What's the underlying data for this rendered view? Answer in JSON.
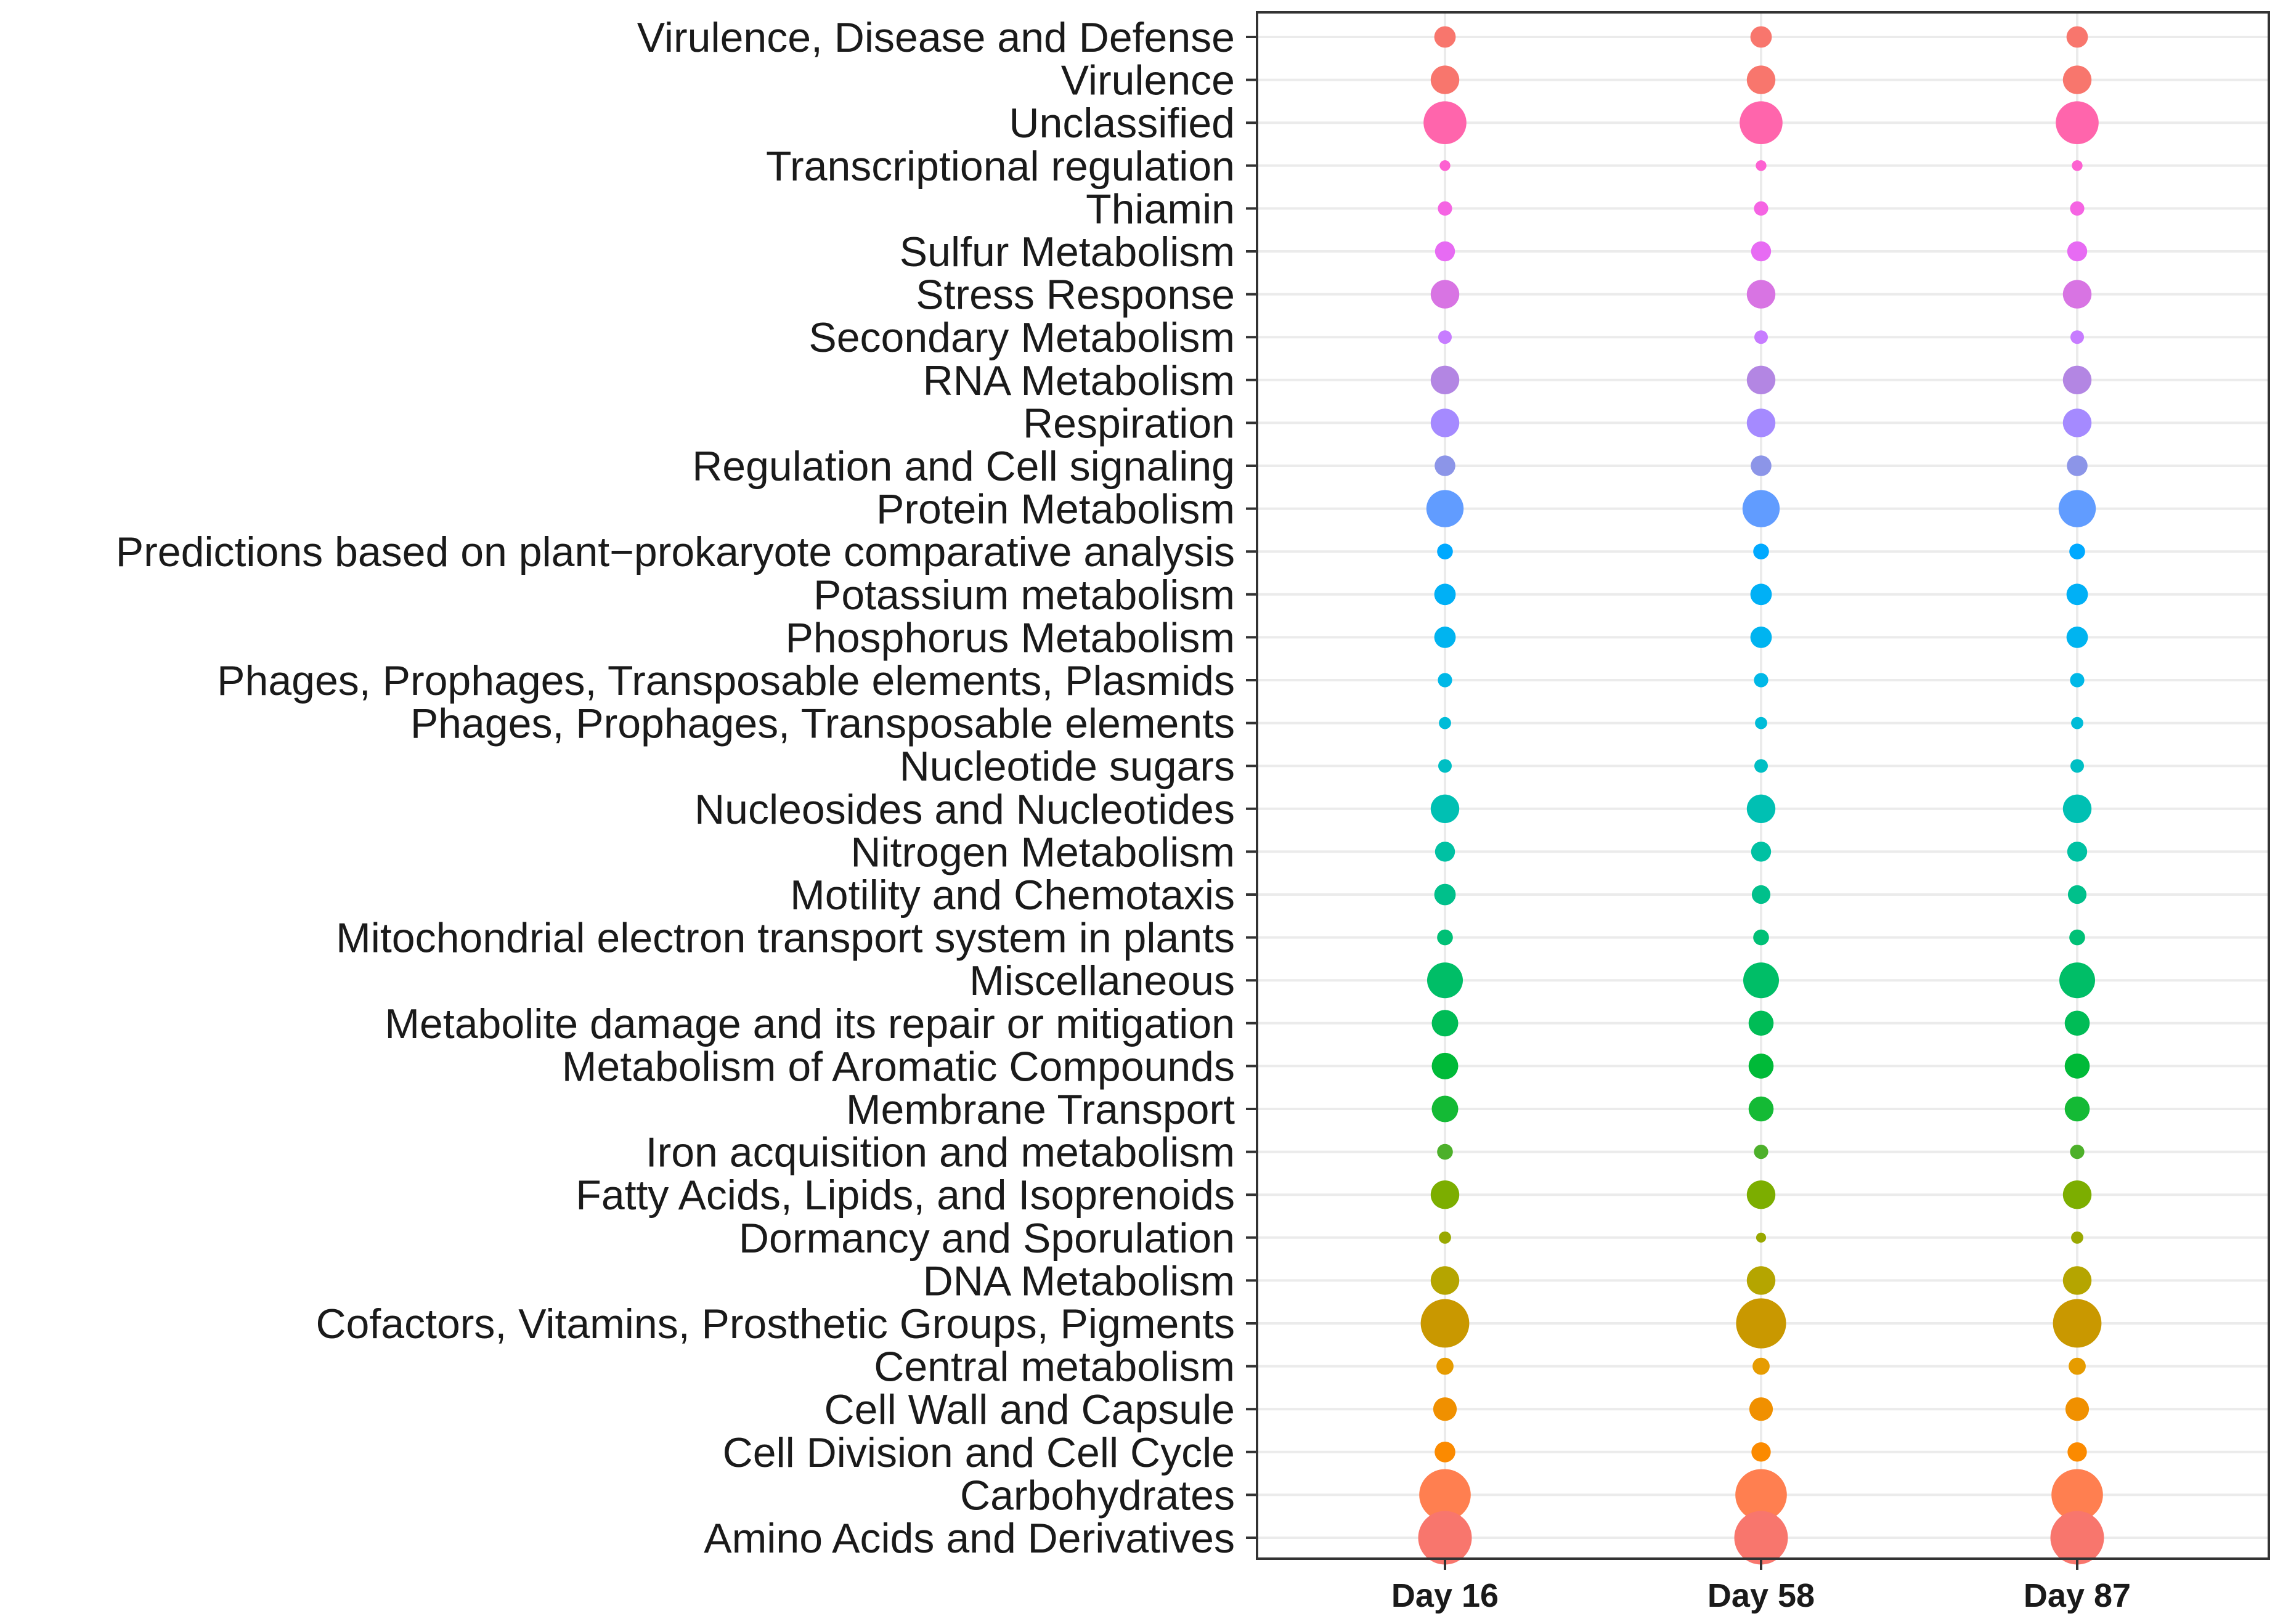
{
  "chart_data": {
    "type": "scatter",
    "subtype": "dot-matrix (bubble size = relative abundance)",
    "title": "",
    "xlabel": "",
    "ylabel": "",
    "legend": "none",
    "grid": true,
    "x_categories": [
      "Day 16",
      "Day 58",
      "Day 87"
    ],
    "size_unit": "relative size (0-1)",
    "rows": [
      {
        "label": "Virulence, Disease and Defense",
        "color": "#F8766D",
        "sizes": [
          0.3,
          0.3,
          0.3
        ]
      },
      {
        "label": "Virulence",
        "color": "#F8766D",
        "sizes": [
          0.4,
          0.4,
          0.4
        ]
      },
      {
        "label": "Unclassified",
        "color": "#FF65AC",
        "sizes": [
          0.6,
          0.6,
          0.6
        ]
      },
      {
        "label": "Transcriptional regulation",
        "color": "#FD61D1",
        "sizes": [
          0.15,
          0.15,
          0.15
        ]
      },
      {
        "label": "Thiamin",
        "color": "#F564E3",
        "sizes": [
          0.2,
          0.2,
          0.2
        ]
      },
      {
        "label": "Sulfur Metabolism",
        "color": "#E76BF3",
        "sizes": [
          0.28,
          0.28,
          0.28
        ]
      },
      {
        "label": "Stress Response",
        "color": "#D874E3",
        "sizes": [
          0.4,
          0.4,
          0.4
        ]
      },
      {
        "label": "Secondary Metabolism",
        "color": "#C77CFF",
        "sizes": [
          0.19,
          0.19,
          0.19
        ]
      },
      {
        "label": "RNA Metabolism",
        "color": "#B386E3",
        "sizes": [
          0.4,
          0.4,
          0.4
        ]
      },
      {
        "label": "Respiration",
        "color": "#A58AFF",
        "sizes": [
          0.4,
          0.4,
          0.4
        ]
      },
      {
        "label": "Regulation and Cell signaling",
        "color": "#8C95E8",
        "sizes": [
          0.29,
          0.29,
          0.29
        ]
      },
      {
        "label": "Protein Metabolism",
        "color": "#619CFF",
        "sizes": [
          0.52,
          0.52,
          0.52
        ]
      },
      {
        "label": "Predictions based on plant−prokaryote comparative analysis",
        "color": "#00A9FF",
        "sizes": [
          0.22,
          0.22,
          0.22
        ]
      },
      {
        "label": "Potassium metabolism",
        "color": "#00B0F6",
        "sizes": [
          0.3,
          0.3,
          0.3
        ]
      },
      {
        "label": "Phosphorus Metabolism",
        "color": "#00B4F0",
        "sizes": [
          0.3,
          0.3,
          0.3
        ]
      },
      {
        "label": "Phages, Prophages, Transposable elements, Plasmids",
        "color": "#00B8E7",
        "sizes": [
          0.2,
          0.2,
          0.2
        ]
      },
      {
        "label": "Phages, Prophages, Transposable elements",
        "color": "#00BCD8",
        "sizes": [
          0.17,
          0.17,
          0.17
        ]
      },
      {
        "label": "Nucleotide sugars",
        "color": "#00BFC4",
        "sizes": [
          0.19,
          0.19,
          0.19
        ]
      },
      {
        "label": "Nucleosides and Nucleotides",
        "color": "#00C0B3",
        "sizes": [
          0.4,
          0.4,
          0.4
        ]
      },
      {
        "label": "Nitrogen Metabolism",
        "color": "#00C1A3",
        "sizes": [
          0.28,
          0.28,
          0.28
        ]
      },
      {
        "label": "Motility and Chemotaxis",
        "color": "#00C08B",
        "sizes": [
          0.3,
          0.26,
          0.26
        ]
      },
      {
        "label": "Mitochondrial electron transport system in plants",
        "color": "#00C076",
        "sizes": [
          0.22,
          0.22,
          0.22
        ]
      },
      {
        "label": "Miscellaneous",
        "color": "#00BE67",
        "sizes": [
          0.5,
          0.5,
          0.5
        ]
      },
      {
        "label": "Metabolite damage and its repair or mitigation",
        "color": "#00BC56",
        "sizes": [
          0.37,
          0.35,
          0.35
        ]
      },
      {
        "label": "Metabolism of Aromatic Compounds",
        "color": "#00BA38",
        "sizes": [
          0.37,
          0.35,
          0.35
        ]
      },
      {
        "label": "Membrane Transport",
        "color": "#14BA35",
        "sizes": [
          0.37,
          0.35,
          0.35
        ]
      },
      {
        "label": "Iron acquisition and metabolism",
        "color": "#4DB02A",
        "sizes": [
          0.22,
          0.2,
          0.2
        ]
      },
      {
        "label": "Fatty Acids, Lipids, and Isoprenoids",
        "color": "#7CAE00",
        "sizes": [
          0.4,
          0.4,
          0.4
        ]
      },
      {
        "label": "Dormancy and Sporulation",
        "color": "#99A800",
        "sizes": [
          0.17,
          0.14,
          0.17
        ]
      },
      {
        "label": "DNA Metabolism",
        "color": "#B5A500",
        "sizes": [
          0.4,
          0.4,
          0.4
        ]
      },
      {
        "label": "Cofactors, Vitamins, Prosthetic Groups, Pigments",
        "color": "#C99800",
        "sizes": [
          0.68,
          0.7,
          0.68
        ]
      },
      {
        "label": "Central metabolism",
        "color": "#E69C00",
        "sizes": [
          0.24,
          0.24,
          0.24
        ]
      },
      {
        "label": "Cell Wall and Capsule",
        "color": "#F09000",
        "sizes": [
          0.33,
          0.33,
          0.33
        ]
      },
      {
        "label": "Cell Division and Cell Cycle",
        "color": "#FB8A00",
        "sizes": [
          0.29,
          0.27,
          0.27
        ]
      },
      {
        "label": "Carbohydrates",
        "color": "#FF7F50",
        "sizes": [
          0.72,
          0.72,
          0.72
        ]
      },
      {
        "label": "Amino Acids and Derivatives",
        "color": "#F8766D",
        "sizes": [
          0.75,
          0.75,
          0.75
        ]
      }
    ]
  }
}
